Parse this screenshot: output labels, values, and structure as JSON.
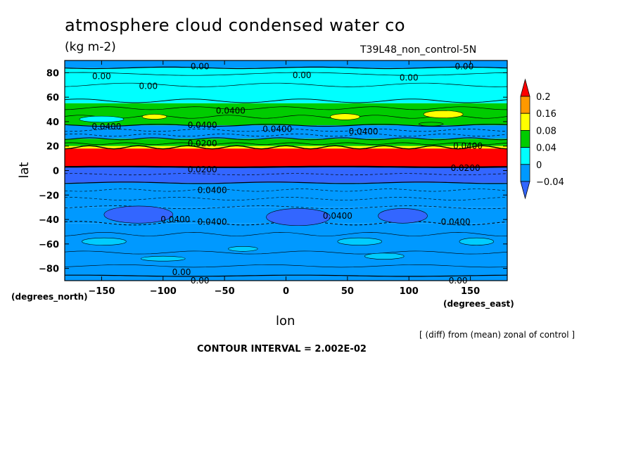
{
  "chart_data": {
    "type": "heatmap",
    "title": "atmosphere cloud condensed water co",
    "units": "(kg m-2)",
    "run_label": "T39L48_non_control-5N",
    "xlabel": "lon",
    "ylabel": "lat",
    "x_unit_label": "(degrees_east)",
    "y_unit_label": "(degrees_north)",
    "xlim": [
      -180,
      180
    ],
    "ylim": [
      -90,
      90
    ],
    "x_ticks": [
      -150,
      -100,
      -50,
      0,
      50,
      100,
      150
    ],
    "y_ticks": [
      80,
      60,
      40,
      20,
      0,
      -20,
      -40,
      -60,
      -80
    ],
    "x_tick_labels": [
      "−150",
      "−100",
      "−50",
      "0",
      "50",
      "100",
      "150"
    ],
    "y_tick_labels": [
      "80",
      "60",
      "40",
      "20",
      "0",
      "−20",
      "−40",
      "−60",
      "−80"
    ],
    "colorbar": {
      "levels": [
        0.2,
        0.16,
        0.08,
        0.04,
        0,
        -0.04
      ],
      "labels": [
        "0.2",
        "0.16",
        "0.08",
        "0.04",
        "0",
        "−0.04"
      ],
      "colors": [
        "#ff0000",
        "#ff9900",
        "#ffff00",
        "#00cc00",
        "#00ffff",
        "#0099ff",
        "#3366ff"
      ]
    },
    "bands": [
      {
        "lat_from": 90,
        "lat_to": 84,
        "color": "#0099ff"
      },
      {
        "lat_from": 84,
        "lat_to": 55,
        "color": "#00ffff"
      },
      {
        "lat_from": 55,
        "lat_to": 37,
        "color": "#00cc00"
      },
      {
        "lat_from": 37,
        "lat_to": 26,
        "color": "#0099ff"
      },
      {
        "lat_from": 26,
        "lat_to": 20,
        "color": "#00cc00"
      },
      {
        "lat_from": 20,
        "lat_to": 18,
        "color": "#ffff00"
      },
      {
        "lat_from": 18,
        "lat_to": 3,
        "color": "#ff0000"
      },
      {
        "lat_from": 3,
        "lat_to": -10,
        "color": "#3366ff"
      },
      {
        "lat_from": -10,
        "lat_to": -30,
        "color": "#0099ff"
      },
      {
        "lat_from": -30,
        "lat_to": -43,
        "color": "#0099ff"
      },
      {
        "lat_from": -43,
        "lat_to": -90,
        "color": "#0099ff"
      }
    ],
    "contour_labels": [
      {
        "text": "0.00",
        "lon": -150,
        "lat": 77
      },
      {
        "text": "0.00",
        "lon": -112,
        "lat": 69
      },
      {
        "text": "0.00",
        "lon": -70,
        "lat": 85
      },
      {
        "text": "0.00",
        "lon": 13,
        "lat": 78
      },
      {
        "text": "0.00",
        "lon": 100,
        "lat": 76
      },
      {
        "text": "0.00",
        "lon": 145,
        "lat": 85
      },
      {
        "text": "0.0400",
        "lon": -45,
        "lat": 49
      },
      {
        "text": "0.0400",
        "lon": -146,
        "lat": 36
      },
      {
        "text": "0.0400",
        "lon": -7,
        "lat": 34
      },
      {
        "text": "0.0400",
        "lon": 63,
        "lat": 32
      },
      {
        "text": "0.0400",
        "lon": -68,
        "lat": 37
      },
      {
        "text": "0.0400",
        "lon": 148,
        "lat": 20
      },
      {
        "text": "0.0200",
        "lon": -68,
        "lat": 22
      },
      {
        "text": "0.0200",
        "lon": -68,
        "lat": 1
      },
      {
        "text": "0.0200",
        "lon": 146,
        "lat": 2
      },
      {
        "text": "0.0400",
        "lon": -60,
        "lat": -16
      },
      {
        "text": "0.0400",
        "lon": -90,
        "lat": -40
      },
      {
        "text": "0.0400",
        "lon": -60,
        "lat": -42
      },
      {
        "text": "0.0400",
        "lon": 42,
        "lat": -37
      },
      {
        "text": "0.0400",
        "lon": 138,
        "lat": -42
      },
      {
        "text": "0.00",
        "lon": -85,
        "lat": -83
      },
      {
        "text": "0.00",
        "lon": -70,
        "lat": -90
      },
      {
        "text": "0.00",
        "lon": 140,
        "lat": -90
      }
    ],
    "contour_interval_text": "CONTOUR INTERVAL = 2.002E-02",
    "note": "[ (diff) from (mean) zonal of control ]"
  }
}
